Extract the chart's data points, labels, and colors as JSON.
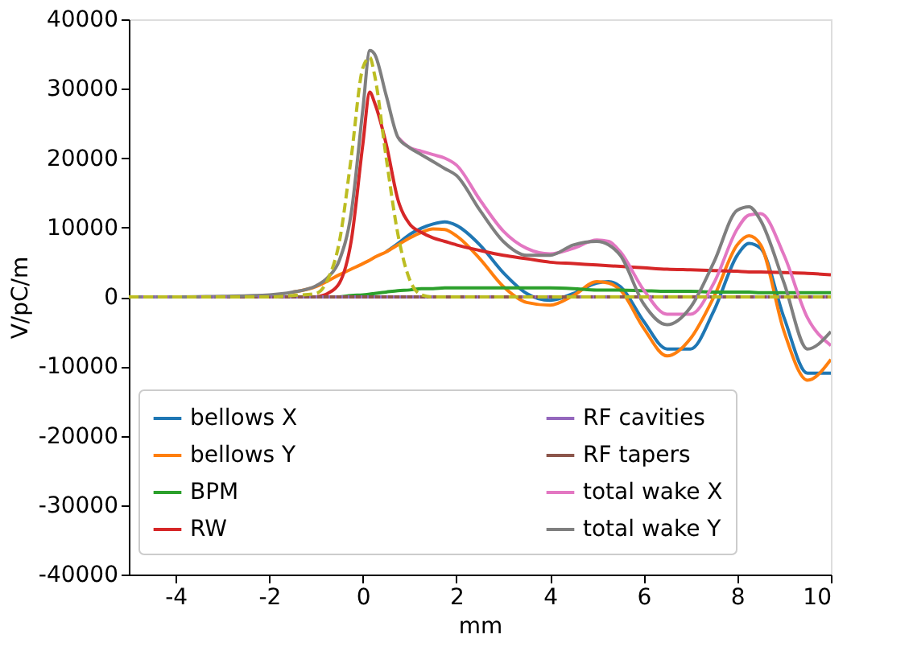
{
  "chart_data": {
    "type": "line",
    "xlabel": "mm",
    "ylabel": "V/pC/m",
    "x": [
      -5,
      -4,
      -3,
      -2,
      -1.5,
      -1,
      -0.75,
      -0.5,
      -0.25,
      0,
      0.15,
      0.25,
      0.5,
      0.75,
      1,
      1.25,
      1.5,
      1.75,
      2,
      2.5,
      3,
      3.5,
      4,
      4.5,
      5,
      5.25,
      5.5,
      6,
      6.5,
      7,
      7.5,
      8,
      8.25,
      8.5,
      9,
      9.5,
      10
    ],
    "series": [
      {
        "name": "bellows X",
        "color": "#1f77b4",
        "values": [
          null,
          null,
          null,
          null,
          null,
          null,
          null,
          null,
          null,
          null,
          null,
          null,
          6500,
          7700,
          9000,
          9900,
          10500,
          10800,
          10300,
          7500,
          3500,
          500,
          -500,
          500,
          2000,
          2200,
          1500,
          -3500,
          -7500,
          -7500,
          -2000,
          6000,
          7700,
          7000,
          -3000,
          -11000,
          -11000
        ]
      },
      {
        "name": "bellows Y",
        "color": "#ff7f0e",
        "values": [
          null,
          null,
          null,
          null,
          700,
          1500,
          2300,
          3200,
          4000,
          4800,
          5300,
          5700,
          6500,
          7500,
          8500,
          9300,
          9800,
          9700,
          8800,
          5500,
          1500,
          -800,
          -1200,
          200,
          2200,
          2000,
          1000,
          -4500,
          -8500,
          -6000,
          0,
          7500,
          8800,
          7500,
          -5000,
          -12000,
          -9000
        ]
      },
      {
        "name": "BPM",
        "color": "#2ca02c",
        "values": [
          null,
          null,
          null,
          null,
          null,
          null,
          null,
          0,
          200,
          300,
          400,
          500,
          700,
          900,
          1000,
          1200,
          1200,
          1300,
          1300,
          1300,
          1300,
          1300,
          1300,
          1200,
          1000,
          1000,
          1000,
          900,
          800,
          800,
          700,
          700,
          700,
          600,
          600,
          600,
          600
        ]
      },
      {
        "name": "RW",
        "color": "#d62728",
        "values": [
          null,
          null,
          null,
          null,
          null,
          0,
          500,
          2000,
          8000,
          22000,
          29500,
          28000,
          22000,
          14000,
          10500,
          9300,
          8500,
          8000,
          7500,
          6700,
          6000,
          5500,
          5000,
          4800,
          4600,
          4500,
          4400,
          4200,
          4000,
          3900,
          3800,
          3700,
          3600,
          3600,
          3500,
          3400,
          3200
        ]
      },
      {
        "name": "RF cavities",
        "color": "#9467bd",
        "line_style": "dotted",
        "values": [
          0,
          0,
          0,
          0,
          0,
          0,
          0,
          0,
          0,
          0,
          0,
          0,
          0,
          0,
          0,
          0,
          0,
          0,
          0,
          0,
          0,
          0,
          0,
          0,
          0,
          0,
          0,
          0,
          0,
          0,
          0,
          0,
          0,
          0,
          0,
          0,
          0
        ]
      },
      {
        "name": "RF tapers",
        "color": "#8c564b",
        "values": [
          0,
          0,
          0,
          0,
          0,
          0,
          0,
          0,
          0,
          0,
          0,
          0,
          0,
          0,
          0,
          0,
          0,
          0,
          0,
          0,
          0,
          0,
          0,
          0,
          0,
          0,
          0,
          0,
          0,
          0,
          0,
          0,
          0,
          0,
          0,
          0,
          0
        ]
      },
      {
        "name": "total wake X",
        "color": "#e377c2",
        "values": [
          null,
          null,
          null,
          null,
          null,
          null,
          null,
          null,
          null,
          null,
          null,
          null,
          null,
          23000,
          21500,
          21000,
          20500,
          20000,
          19000,
          14000,
          9500,
          7000,
          6200,
          7000,
          8200,
          8000,
          6500,
          1000,
          -2500,
          -2500,
          2000,
          9800,
          11800,
          12000,
          6000,
          -3000,
          -7000
        ]
      },
      {
        "name": "total wake Y",
        "color": "#7f7f7f",
        "values": [
          0,
          0,
          100,
          300,
          700,
          1600,
          2800,
          5300,
          12000,
          27000,
          35500,
          35000,
          29000,
          23000,
          21500,
          20500,
          19500,
          18500,
          17500,
          12500,
          8000,
          6000,
          6000,
          7500,
          8000,
          7500,
          6000,
          -1000,
          -4000,
          -1500,
          5000,
          12500,
          13000,
          11000,
          2000,
          -7500,
          -5000
        ]
      },
      {
        "color": "#bcbd22",
        "line_style": "dashed",
        "values": [
          0,
          0,
          0,
          0,
          200,
          500,
          2500,
          8000,
          20000,
          33000,
          34500,
          32000,
          20000,
          9000,
          2500,
          300,
          0,
          0,
          0,
          0,
          0,
          0,
          0,
          0,
          0,
          0,
          0,
          0,
          0,
          0,
          0,
          0,
          0,
          0,
          0,
          0,
          0
        ]
      }
    ],
    "xlim": [
      -5,
      10
    ],
    "xticks": [
      -4,
      -2,
      0,
      2,
      4,
      6,
      8,
      10
    ],
    "ylim": [
      -40000,
      40000
    ],
    "yticks": [
      -40000,
      -30000,
      -20000,
      -10000,
      0,
      10000,
      20000,
      30000,
      40000
    ],
    "grid": false,
    "legend": "bottom",
    "marker": "none",
    "line_style": "solid"
  }
}
